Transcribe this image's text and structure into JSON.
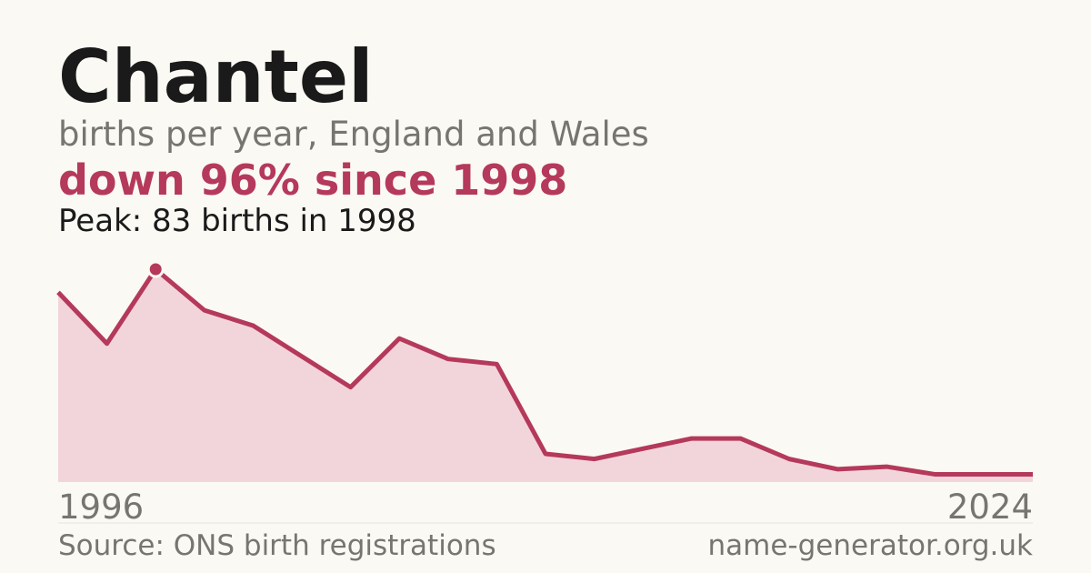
{
  "chart_data": {
    "type": "area",
    "title": "Chantel",
    "subtitle": "births per year, England and Wales",
    "headline": "down 96% since 1998",
    "peak_note": "Peak: 83 births in 1998",
    "source": "Source: ONS birth registrations",
    "site": "name-generator.org.uk",
    "categories": [
      "1996",
      null,
      null,
      null,
      null,
      null,
      null,
      null,
      null,
      null,
      null,
      null,
      null,
      null,
      null,
      null,
      null,
      null,
      null,
      null,
      "2024"
    ],
    "values": [
      74,
      54,
      83,
      67,
      61,
      49,
      37,
      56,
      48,
      46,
      11,
      9,
      13,
      17,
      17,
      9,
      5,
      6,
      3,
      3,
      3
    ],
    "peak_index": 2,
    "color": "#b5395a",
    "fill": "#f2d5db",
    "ylim": [
      0,
      83
    ]
  }
}
